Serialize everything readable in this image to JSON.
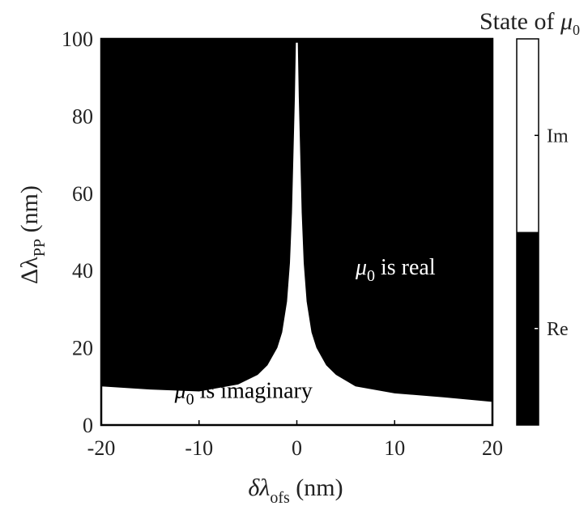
{
  "chart_data": {
    "type": "heatmap",
    "xlabel": {
      "main": "δλ",
      "sub": "ofs",
      "unit": " (nm)"
    },
    "ylabel": {
      "main": "Δλ",
      "sub": "PP",
      "unit": " (nm)"
    },
    "xlim": [
      -20,
      20
    ],
    "ylim": [
      0,
      100
    ],
    "xticks": [
      "-20",
      "-10",
      "0",
      "10",
      "20"
    ],
    "yticks": [
      "0",
      "20",
      "40",
      "60",
      "80",
      "100"
    ],
    "regions": [
      {
        "state": "Re",
        "color": "#000000",
        "label": {
          "sym": "μ",
          "sub": "0",
          "text": " is real",
          "x": 6,
          "y": 39
        }
      },
      {
        "state": "Im",
        "color": "#ffffff",
        "label": {
          "sym": "μ",
          "sub": "0",
          "text": " is imaginary",
          "x": -12.5,
          "y": 7
        }
      }
    ],
    "boundary_note": "Upper edge of the imaginary region",
    "boundary_left": [
      [
        -20,
        10.0
      ],
      [
        -15,
        9.2
      ],
      [
        -10,
        8.7
      ],
      [
        -6,
        10.5
      ],
      [
        -4,
        13
      ],
      [
        -3,
        15.5
      ],
      [
        -2,
        20
      ],
      [
        -1.5,
        24
      ],
      [
        -1.0,
        32
      ],
      [
        -0.7,
        42
      ],
      [
        -0.5,
        55
      ],
      [
        -0.35,
        70
      ],
      [
        -0.2,
        85
      ],
      [
        -0.1,
        99
      ]
    ],
    "boundary_right": [
      [
        0.1,
        99
      ],
      [
        0.2,
        85
      ],
      [
        0.35,
        70
      ],
      [
        0.5,
        55
      ],
      [
        0.7,
        42
      ],
      [
        1.0,
        32
      ],
      [
        1.5,
        24
      ],
      [
        2,
        20
      ],
      [
        3,
        15.5
      ],
      [
        4,
        13
      ],
      [
        6,
        10
      ],
      [
        10,
        8.2
      ],
      [
        15,
        7.2
      ],
      [
        20,
        6.0
      ]
    ],
    "colorbar": {
      "title": {
        "text": "State of ",
        "sym": "μ",
        "sub": "0"
      },
      "levels": [
        {
          "label": "Im",
          "color": "#ffffff"
        },
        {
          "label": "Re",
          "color": "#000000"
        }
      ]
    }
  }
}
